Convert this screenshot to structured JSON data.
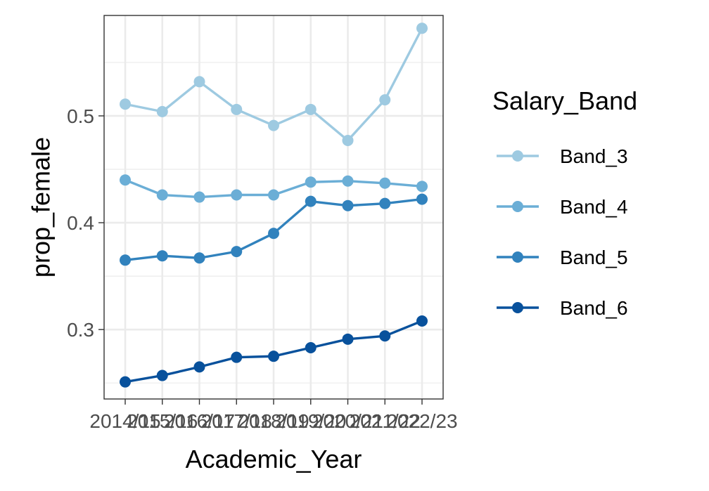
{
  "chart_data": {
    "type": "line",
    "xlabel": "Academic_Year",
    "ylabel": "prop_female",
    "categories": [
      "2014/15",
      "2015/16",
      "2016/17",
      "2017/18",
      "2018/19",
      "2019/20",
      "2020/21",
      "2021/22",
      "2022/23"
    ],
    "ylim": [
      0.235,
      0.594
    ],
    "yticks": [
      0.3,
      0.4,
      0.5
    ],
    "ytick_labels": [
      "0.3",
      "0.4",
      "0.5"
    ],
    "grid": true,
    "legend": {
      "title": "Salary_Band",
      "position": "right"
    },
    "series": [
      {
        "name": "Band_3",
        "color": "#9ECAE1",
        "values": [
          0.511,
          0.504,
          0.532,
          0.506,
          0.491,
          0.506,
          0.477,
          0.515,
          0.582
        ]
      },
      {
        "name": "Band_4",
        "color": "#6BAED6",
        "values": [
          0.44,
          0.426,
          0.424,
          0.426,
          0.426,
          0.438,
          0.439,
          0.437,
          0.434
        ]
      },
      {
        "name": "Band_5",
        "color": "#3182BD",
        "values": [
          0.365,
          0.369,
          0.367,
          0.373,
          0.39,
          0.42,
          0.416,
          0.418,
          0.422
        ]
      },
      {
        "name": "Band_6",
        "color": "#08519C",
        "values": [
          0.251,
          0.257,
          0.265,
          0.274,
          0.275,
          0.283,
          0.291,
          0.294,
          0.308
        ]
      }
    ]
  }
}
